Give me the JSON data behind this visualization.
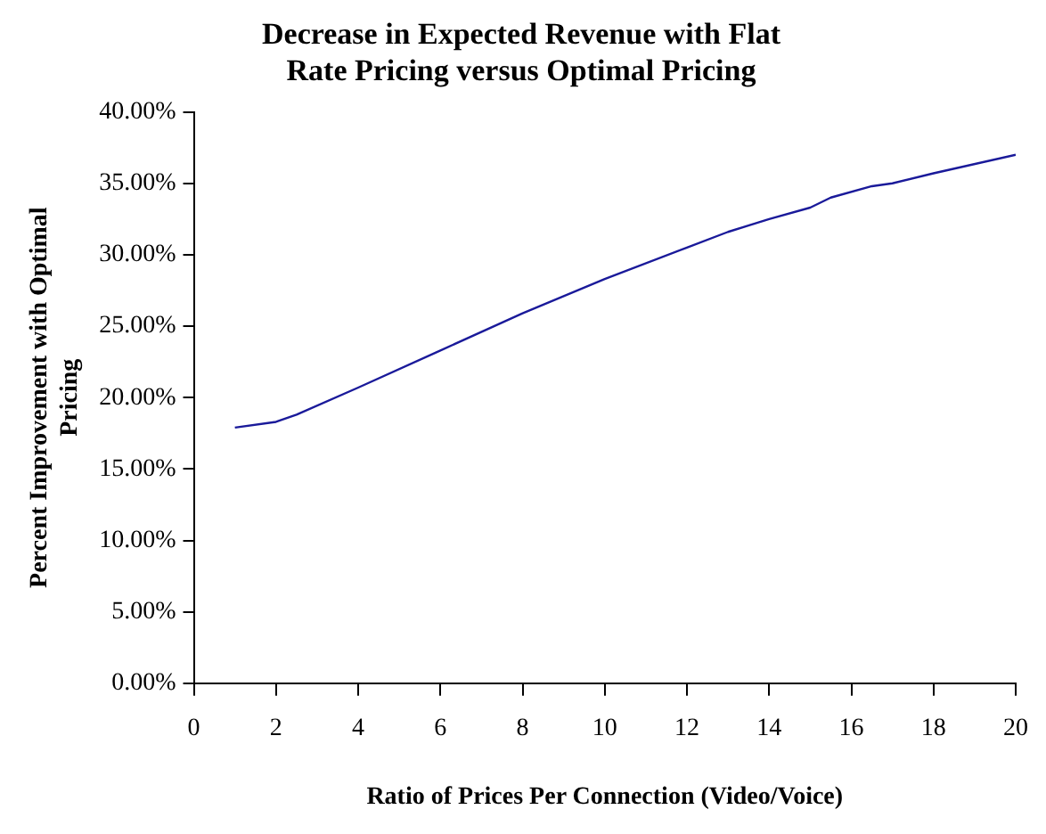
{
  "chart_data": {
    "type": "line",
    "title": "Decrease in Expected Revenue with Flat Rate Pricing versus Optimal Pricing",
    "xlabel": "Ratio of Prices Per Connection (Video/Voice)",
    "ylabel": "Percent Improvement with Optimal Pricing",
    "x": [
      1,
      2,
      2.5,
      4,
      6,
      8,
      10,
      12,
      13,
      14,
      15,
      15.5,
      16.5,
      17,
      18,
      20
    ],
    "series": [
      {
        "color": "#1a1a9a",
        "values": [
          17.9,
          18.3,
          18.8,
          20.7,
          23.3,
          25.9,
          28.3,
          30.5,
          31.6,
          32.5,
          33.3,
          34.0,
          34.8,
          35.0,
          35.7,
          37.0
        ]
      }
    ],
    "xlim": [
      0,
      20
    ],
    "xticks": [
      0,
      2,
      4,
      6,
      8,
      10,
      12,
      14,
      16,
      18,
      20
    ],
    "ylim": [
      0,
      40
    ],
    "yticks": [
      {
        "value": 0,
        "label": "0.00%"
      },
      {
        "value": 5,
        "label": "5.00%"
      },
      {
        "value": 10,
        "label": "10.00%"
      },
      {
        "value": 15,
        "label": "15.00%"
      },
      {
        "value": 20,
        "label": "20.00%"
      },
      {
        "value": 25,
        "label": "25.00%"
      },
      {
        "value": 30,
        "label": "30.00%"
      },
      {
        "value": 35,
        "label": "35.00%"
      },
      {
        "value": 40,
        "label": "40.00%"
      }
    ],
    "grid": false,
    "legend": false,
    "marker": "none",
    "line_style": "solid"
  }
}
